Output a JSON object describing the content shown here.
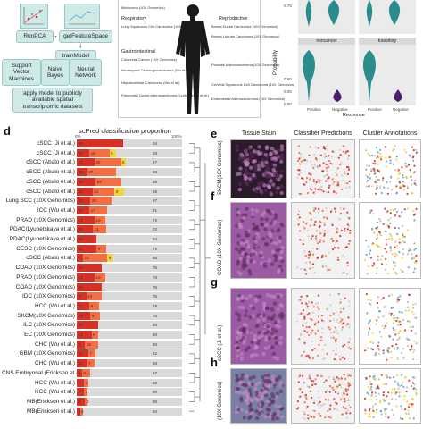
{
  "workflow": {
    "run_pca": "RunPCA",
    "get_feature_space": "getFeatureSpace",
    "train_model": "trainModel",
    "model_selection": "Model Selection",
    "models": [
      "Support Vector Machines",
      "Naive Bayes",
      "Neural Network"
    ],
    "apply": "apply model to publicly available spatial transcriptomic datasets"
  },
  "body_map": {
    "top_entries": [
      "Melanoma (10X Genomics)"
    ],
    "respiratory": {
      "title": "Respiratory",
      "entries": [
        "Lung Squamous Cell Carcinoma (10X Genomics)"
      ]
    },
    "gastrointestinal": {
      "title": "Gastrointestinal",
      "entries": [
        "Colorectal Cancer (10X Genomics)",
        "Intrahepatic Cholangiocarcinoma (Wu et al.)",
        "Hepatocellular Carcinoma (Wu et al.)",
        "Pancreatic Ductal Adenocarcinoma (Lyubetskaya et al.)"
      ]
    },
    "reproductive": {
      "title": "Reproductive",
      "entries": [
        "Breast Ductal Carcinoma (10X Genomics)",
        "Breast Lobular Carcinoma (10X Genomics)",
        "Prostate Adenocarcinoma (10X Genomics)",
        "Cervical Squamous Cell Carcinoma (10X Genomics)",
        "Endometrial Adenocarcinoma (10X Genomics)"
      ]
    }
  },
  "violin": {
    "ylabel": "Probability",
    "xlabel": "Response",
    "facets": [
      "noncancer",
      "transitory"
    ],
    "categories": [
      "Positive",
      "Negative"
    ],
    "ticks": [
      "0.75",
      "0.50",
      "0.25",
      "0.00"
    ]
  },
  "panel_d": {
    "letter": "d",
    "title": "scPred classification proportion",
    "pct_left": "0%",
    "pct_right": "100%"
  },
  "colors": {
    "red": "#d73027",
    "orange": "#f46d43",
    "yellow": "#f5d33a",
    "blue": "#5aa5d6",
    "grey": "#d9d9d9",
    "teal": "#cfe9e6",
    "violin": "#2a8c8c",
    "purple": "#4b1d6e"
  },
  "chart_data": {
    "type": "bar",
    "title": "scPred classification proportion",
    "categories": [
      "cSCC (Ji et al.)",
      "cSCC (Ji et al.)",
      "cSCC (Abalo et al.)",
      "cSCC (Abalo et al.)",
      "cSCC (Abalo et al.)",
      "cSCC (Abalo et al.)",
      "Lung SCC (10X Genomics)",
      "ICC (Wu et al.)",
      "PRAD (10X Genomics)",
      "PDAC(Lyubetskaya et al.)",
      "PDAC(Lyubetskaya et al.)",
      "CESC (10X Genomics)",
      "cSCC (Abalo et al.)",
      "COAD (10X Genomics)",
      "PRAD (10X Genomics)",
      "COAD (10X Genomics)",
      "IDC (10X Genomics)",
      "HCC (Wu et al.)",
      "SKCM(10X Genomics)",
      "ILC (10X Genomics)",
      "EC (10X Genomics)",
      "CHC (Wu et al.)",
      "GBM (10X Genomics)",
      "CHC (Wu et al.)",
      "CNS Embryonal (Erickson et al.)",
      "HCC (Wu et al.)",
      "HCC (Wu et al.)",
      "MB(Erickson et al.)",
      "MB(Erickson et al.)"
    ],
    "series": [
      {
        "values": [
          44,
          12,
          17,
          10,
          18,
          15,
          13,
          12,
          17,
          15,
          19,
          19,
          6,
          24,
          17,
          24,
          9,
          12,
          13,
          20,
          14,
          8,
          11,
          10,
          5,
          7,
          7,
          8,
          3
        ]
      },
      {
        "values": [
          0,
          19,
          25,
          27,
          24,
          21,
          20,
          17,
          10,
          13,
          0,
          9,
          23,
          0,
          10,
          0,
          15,
          9,
          9,
          0,
          6,
          12,
          7,
          7,
          8,
          4,
          3,
          2,
          3
        ]
      },
      {
        "values": [
          0,
          6,
          5,
          0,
          0,
          9,
          0,
          0,
          0,
          0,
          0,
          0,
          5,
          0,
          0,
          0,
          0,
          0,
          0,
          0,
          0,
          0,
          0,
          0,
          0,
          0,
          0,
          0,
          0
        ]
      }
    ],
    "labels": [
      [
        "44",
        "",
        "",
        "34"
      ],
      [
        "12",
        "19",
        "6",
        "33"
      ],
      [
        "17",
        "25",
        "5",
        "",
        "47"
      ],
      [
        "10",
        "27",
        "",
        "63"
      ],
      [
        "18",
        "24",
        "",
        "58"
      ],
      [
        "15",
        "21",
        "9",
        "",
        "55"
      ],
      [
        "13",
        "20",
        "",
        "67"
      ],
      [
        "12",
        "17",
        "",
        "71"
      ],
      [
        "17",
        "10",
        "",
        "72"
      ],
      [
        "15",
        "13",
        "",
        "72"
      ],
      [
        "19",
        "",
        "64"
      ],
      [
        "19",
        "9",
        "",
        "72"
      ],
      [
        "6",
        "23",
        "5",
        "",
        "66"
      ],
      [
        "24",
        "",
        "76"
      ],
      [
        "17",
        "10",
        "",
        "73"
      ],
      [
        "24",
        "",
        "76"
      ],
      [
        "9",
        "15",
        "",
        "76"
      ],
      [
        "12",
        "9",
        "",
        "79"
      ],
      [
        "13",
        "9",
        "",
        "78"
      ],
      [
        "20",
        "",
        "80"
      ],
      [
        "14",
        "6",
        "",
        "80"
      ],
      [
        "8",
        "12",
        "",
        "80"
      ],
      [
        "11",
        "7",
        "",
        "82"
      ],
      [
        "10",
        "7",
        "",
        "83"
      ],
      [
        "5",
        "8",
        "",
        "87"
      ],
      [
        "7",
        "4",
        "",
        "89"
      ],
      [
        "7",
        "3",
        "",
        "90"
      ],
      [
        "8",
        "2",
        "",
        "90"
      ],
      [
        "3",
        "3",
        "",
        "94"
      ]
    ]
  },
  "spatial": {
    "column_headers": [
      "Tissue Stain",
      "Classifier Predictions",
      "Cluster Annotations"
    ],
    "rows": [
      {
        "letter": "e",
        "label": "SKCM(10X Genomics)"
      },
      {
        "letter": "f",
        "label": "COAD (10X Genomics)"
      },
      {
        "letter": "g",
        "label": "cSCC (Ji et al.)"
      },
      {
        "letter": "h",
        "label": "(10X Genomics)"
      }
    ]
  }
}
